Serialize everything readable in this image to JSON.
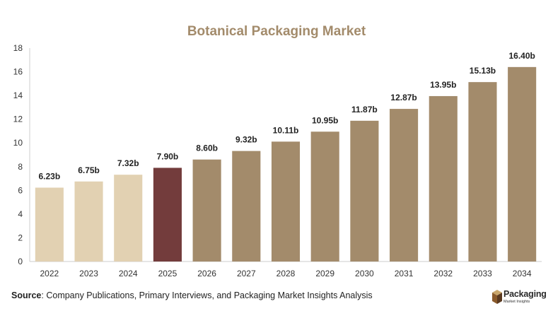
{
  "chart_data": {
    "type": "bar",
    "title": "Botanical Packaging Market",
    "categories": [
      "2022",
      "2023",
      "2024",
      "2025",
      "2026",
      "2027",
      "2028",
      "2029",
      "2030",
      "2031",
      "2032",
      "2033",
      "2034"
    ],
    "values": [
      6.23,
      6.75,
      7.32,
      7.9,
      8.6,
      9.32,
      10.11,
      10.95,
      11.87,
      12.87,
      13.95,
      15.13,
      16.4
    ],
    "value_labels": [
      "6.23b",
      "6.75b",
      "7.32b",
      "7.90b",
      "8.60b",
      "9.32b",
      "10.11b",
      "10.95b",
      "11.87b",
      "12.87b",
      "13.95b",
      "15.13b",
      "16.40b"
    ],
    "bar_colors": [
      "#e2d1b2",
      "#e2d1b2",
      "#e2d1b2",
      "#733c3c",
      "#a38b6b",
      "#a38b6b",
      "#a38b6b",
      "#a38b6b",
      "#a38b6b",
      "#a38b6b",
      "#a38b6b",
      "#a38b6b",
      "#a38b6b"
    ],
    "ylim": [
      0,
      18
    ],
    "yticks": [
      0,
      2,
      4,
      6,
      8,
      10,
      12,
      14,
      16,
      18
    ],
    "xlabel": "",
    "ylabel": "",
    "grid": false,
    "legend": "none"
  },
  "colors": {
    "title": "#a38b6b",
    "axis": "#cccccc",
    "tick_text": "#333333",
    "value_label": "#222222"
  },
  "source": {
    "label": "Source",
    "text": ": Company Publications, Primary Interviews, and Packaging Market Insights Analysis"
  },
  "logo": {
    "name": "Packaging",
    "tagline": "Market Insights",
    "icon": "box-icon"
  }
}
